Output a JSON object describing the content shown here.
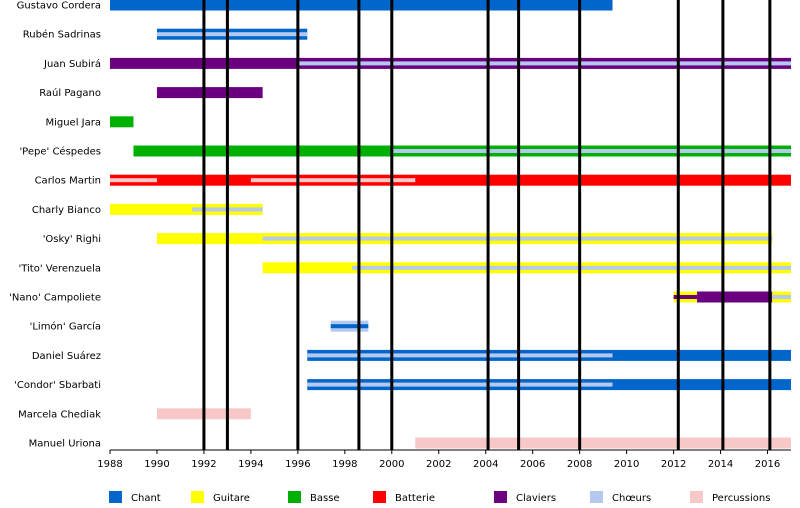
{
  "chart_data": {
    "type": "timeline",
    "x_range": [
      1988,
      2017
    ],
    "x_ticks": [
      1988,
      1990,
      1992,
      1994,
      1996,
      1998,
      2000,
      2002,
      2004,
      2006,
      2008,
      2010,
      2012,
      2014,
      2016
    ],
    "x_tick_labels": [
      "1988",
      "1990",
      "1992",
      "1994",
      "1996",
      "1998",
      "2000",
      "2002",
      "2004",
      "2006",
      "2008",
      "2010",
      "2012",
      "2014",
      "2016"
    ],
    "event_lines": [
      1992.0,
      1993.0,
      1996.0,
      1998.6,
      2000.0,
      2004.1,
      2005.4,
      2008.0,
      2012.2,
      2014.1,
      2016.1
    ],
    "roles": [
      {
        "key": "chant",
        "name": "Chant",
        "color": "#0066cc"
      },
      {
        "key": "guitare",
        "name": "Guitare",
        "color": "#ffff00"
      },
      {
        "key": "basse",
        "name": "Basse",
        "color": "#00b000"
      },
      {
        "key": "batterie",
        "name": "Batterie",
        "color": "#ff0000"
      },
      {
        "key": "claviers",
        "name": "Claviers",
        "color": "#6a0080"
      },
      {
        "key": "choeurs",
        "name": "Chœurs",
        "color": "#b4c8f0"
      },
      {
        "key": "percussions",
        "name": "Percussions",
        "color": "#f8c8c8"
      }
    ],
    "members": [
      {
        "name": "Gustavo Cordera",
        "bars": [
          {
            "role": "chant",
            "start": 1988,
            "end": 2009.4
          }
        ]
      },
      {
        "name": "Rubén Sadrinas",
        "bars": [
          {
            "role": "chant",
            "start": 1990,
            "end": 1996.4
          }
        ],
        "stripes": [
          {
            "role": "choeurs",
            "start": 1990,
            "end": 1996.4
          }
        ]
      },
      {
        "name": "Juan Subirá",
        "bars": [
          {
            "role": "claviers",
            "start": 1988,
            "end": 2017
          }
        ],
        "stripes": [
          {
            "role": "choeurs",
            "start": 1996,
            "end": 2017
          }
        ]
      },
      {
        "name": "Raúl Pagano",
        "bars": [
          {
            "role": "claviers",
            "start": 1990,
            "end": 1994.5
          }
        ]
      },
      {
        "name": "Miguel Jara",
        "bars": [
          {
            "role": "basse",
            "start": 1988,
            "end": 1989
          }
        ]
      },
      {
        "name": "'Pepe' Céspedes",
        "bars": [
          {
            "role": "basse",
            "start": 1989,
            "end": 2017
          }
        ],
        "stripes": [
          {
            "role": "choeurs",
            "start": 2000,
            "end": 2017
          }
        ]
      },
      {
        "name": "Carlos Martin",
        "bars": [
          {
            "role": "batterie",
            "start": 1988,
            "end": 2017
          }
        ],
        "stripes": [
          {
            "role": "percussions",
            "start": 1988,
            "end": 1990
          },
          {
            "role": "percussions",
            "start": 1994,
            "end": 2001
          }
        ]
      },
      {
        "name": "Charly Bianco",
        "bars": [
          {
            "role": "guitare",
            "start": 1988,
            "end": 1994.5
          }
        ],
        "stripes": [
          {
            "role": "choeurs",
            "start": 1991.5,
            "end": 1994.5
          }
        ]
      },
      {
        "name": "'Osky' Righi",
        "bars": [
          {
            "role": "guitare",
            "start": 1990,
            "end": 2016.2
          }
        ],
        "stripes": [
          {
            "role": "choeurs",
            "start": 1994.5,
            "end": 2016.2
          }
        ]
      },
      {
        "name": "'Tito' Verenzuela",
        "bars": [
          {
            "role": "guitare",
            "start": 1994.5,
            "end": 2017
          }
        ],
        "stripes": [
          {
            "role": "choeurs",
            "start": 1998.3,
            "end": 2017
          }
        ]
      },
      {
        "name": "'Nano' Campoliete",
        "bars": [
          {
            "role": "guitare",
            "start": 2012,
            "end": 2013
          },
          {
            "role": "claviers",
            "start": 2013,
            "end": 2016.2
          },
          {
            "role": "guitare",
            "start": 2016.2,
            "end": 2017
          }
        ],
        "stripes": [
          {
            "role": "claviers",
            "start": 2012,
            "end": 2013
          },
          {
            "role": "choeurs",
            "start": 2016.2,
            "end": 2017
          }
        ]
      },
      {
        "name": "'Limón' García",
        "bars": [
          {
            "role": "choeurs",
            "start": 1997.4,
            "end": 1999
          }
        ],
        "stripes": [
          {
            "role": "chant",
            "start": 1997.4,
            "end": 1999
          }
        ]
      },
      {
        "name": "Daniel Suárez",
        "bars": [
          {
            "role": "chant",
            "start": 1996.4,
            "end": 2017
          }
        ],
        "stripes": [
          {
            "role": "choeurs",
            "start": 1996.4,
            "end": 2009.4
          }
        ]
      },
      {
        "name": "'Condor' Sbarbati",
        "bars": [
          {
            "role": "chant",
            "start": 1996.4,
            "end": 2017
          }
        ],
        "stripes": [
          {
            "role": "choeurs",
            "start": 1996.4,
            "end": 2009.4
          }
        ]
      },
      {
        "name": "Marcela Chediak",
        "bars": [
          {
            "role": "percussions",
            "start": 1990,
            "end": 1994
          }
        ]
      },
      {
        "name": "Manuel Uriona",
        "bars": [
          {
            "role": "percussions",
            "start": 2001,
            "end": 2017
          }
        ]
      }
    ]
  }
}
